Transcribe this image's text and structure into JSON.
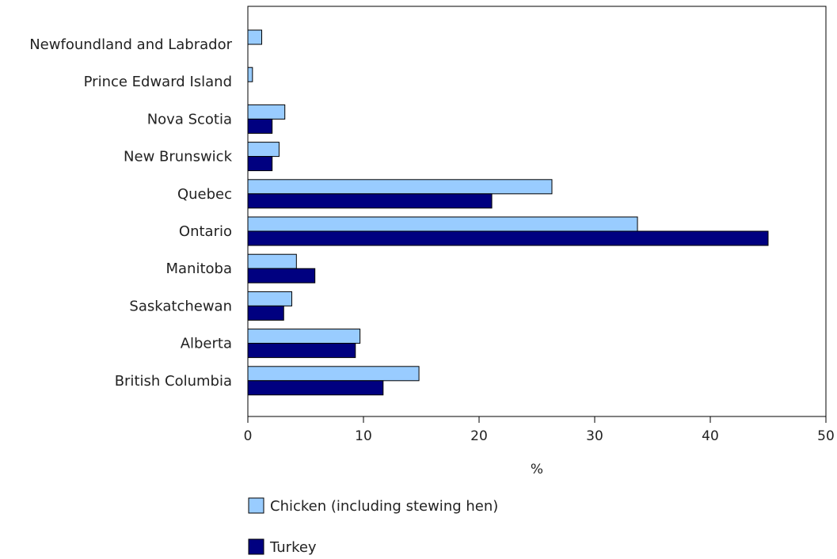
{
  "chart_data": {
    "type": "bar",
    "orientation": "horizontal",
    "categories": [
      "Newfoundland and Labrador",
      "Prince Edward Island",
      "Nova Scotia",
      "New Brunswick",
      "Quebec",
      "Ontario",
      "Manitoba",
      "Saskatchewan",
      "Alberta",
      "British Columbia"
    ],
    "series": [
      {
        "name": "Chicken (including stewing hen)",
        "color": "#99ccff",
        "values": [
          1.2,
          0.4,
          3.2,
          2.7,
          26.3,
          33.7,
          4.2,
          3.8,
          9.7,
          14.8
        ]
      },
      {
        "name": "Turkey",
        "color": "#000080",
        "values": [
          0.0,
          0.0,
          2.1,
          2.1,
          21.1,
          45.0,
          5.8,
          3.1,
          9.3,
          11.7
        ]
      }
    ],
    "xlabel": "%",
    "ylabel": "",
    "xlim": [
      0,
      50
    ],
    "xticks": [
      "0",
      "10",
      "20",
      "30",
      "40",
      "50"
    ],
    "grid": false,
    "legend_position": "bottom"
  }
}
